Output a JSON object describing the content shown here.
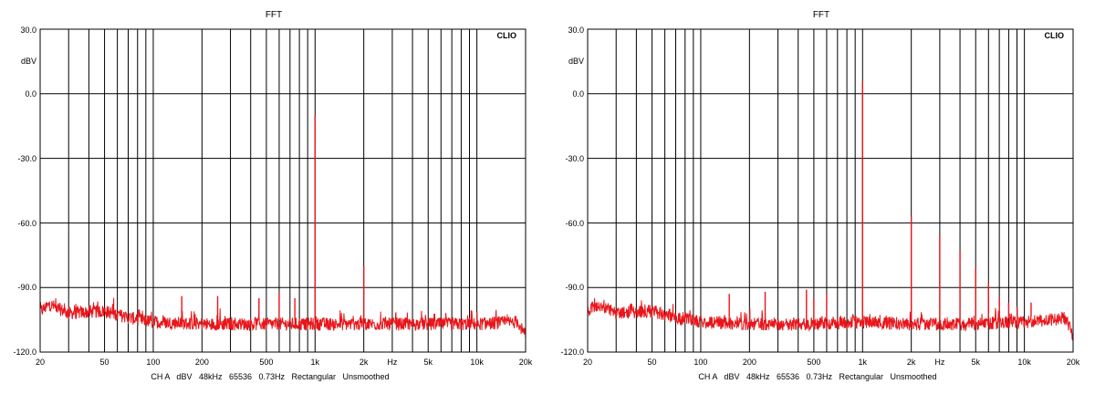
{
  "charts": [
    {
      "title": "FFT",
      "brand": "CLIO",
      "footer": "CH A   dBV   48kHz   65536   0.73Hz   Rectangular   Unsmoothed",
      "y_unit": "dBV",
      "hz_label": "Hz",
      "x_ticks": [
        "20",
        "50",
        "100",
        "200",
        "500",
        "1k",
        "2k",
        "5k",
        "10k",
        "20k"
      ],
      "y_ticks": [
        "30.0",
        "0.0",
        "-30.0",
        "-60.0",
        "-90.0",
        "-120.0"
      ]
    },
    {
      "title": "FFT",
      "brand": "CLIO",
      "footer": "CH A   dBV   48kHz   65536   0.73Hz   Rectangular   Unsmoothed",
      "y_unit": "dBV",
      "hz_label": "Hz",
      "x_ticks": [
        "20",
        "50",
        "100",
        "200",
        "500",
        "1k",
        "2k",
        "5k",
        "10k",
        "20k"
      ],
      "y_ticks": [
        "30.0",
        "0.0",
        "-30.0",
        "-60.0",
        "-90.0",
        "-120.0"
      ]
    }
  ],
  "chart_data": [
    {
      "type": "line",
      "title": "FFT",
      "xlabel": "Hz",
      "ylabel": "dBV",
      "xscale": "log",
      "xlim": [
        20,
        20000
      ],
      "ylim": [
        -120,
        30
      ],
      "grid": true,
      "trace_color": "#e8161b",
      "noise_floor": [
        [
          20,
          -101
        ],
        [
          23,
          -98
        ],
        [
          30,
          -102
        ],
        [
          50,
          -101
        ],
        [
          70,
          -104
        ],
        [
          100,
          -106
        ],
        [
          200,
          -107
        ],
        [
          500,
          -107
        ],
        [
          1000,
          -107
        ],
        [
          2000,
          -107
        ],
        [
          5000,
          -107
        ],
        [
          10000,
          -107
        ],
        [
          18000,
          -106
        ],
        [
          20000,
          -113
        ]
      ],
      "peaks": [
        {
          "x": 150,
          "y": -94
        },
        {
          "x": 250,
          "y": -94
        },
        {
          "x": 450,
          "y": -95
        },
        {
          "x": 600,
          "y": -92
        },
        {
          "x": 750,
          "y": -95
        },
        {
          "x": 1000,
          "y": -10
        },
        {
          "x": 2000,
          "y": -80
        }
      ]
    },
    {
      "type": "line",
      "title": "FFT",
      "xlabel": "Hz",
      "ylabel": "dBV",
      "xscale": "log",
      "xlim": [
        20,
        20000
      ],
      "ylim": [
        -120,
        30
      ],
      "grid": true,
      "trace_color": "#e8161b",
      "noise_floor": [
        [
          20,
          -101
        ],
        [
          23,
          -98
        ],
        [
          30,
          -102
        ],
        [
          50,
          -101
        ],
        [
          70,
          -104
        ],
        [
          100,
          -106
        ],
        [
          200,
          -107
        ],
        [
          500,
          -107
        ],
        [
          1000,
          -106
        ],
        [
          2000,
          -107
        ],
        [
          5000,
          -107
        ],
        [
          10000,
          -106
        ],
        [
          15000,
          -105
        ],
        [
          18000,
          -104
        ],
        [
          20000,
          -113
        ]
      ],
      "peaks": [
        {
          "x": 150,
          "y": -93
        },
        {
          "x": 250,
          "y": -92
        },
        {
          "x": 450,
          "y": -91
        },
        {
          "x": 500,
          "y": -95
        },
        {
          "x": 600,
          "y": -93
        },
        {
          "x": 1000,
          "y": 6
        },
        {
          "x": 2000,
          "y": -57
        },
        {
          "x": 3000,
          "y": -66
        },
        {
          "x": 4000,
          "y": -73
        },
        {
          "x": 5000,
          "y": -81
        },
        {
          "x": 6000,
          "y": -88
        },
        {
          "x": 7000,
          "y": -95
        },
        {
          "x": 8000,
          "y": -97
        },
        {
          "x": 11000,
          "y": -97
        }
      ]
    }
  ]
}
